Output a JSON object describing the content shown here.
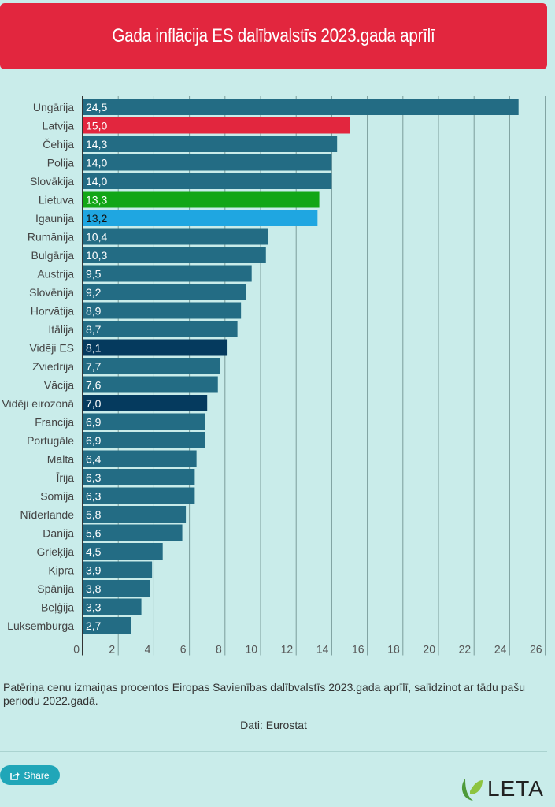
{
  "title": "Gada inflācija ES dalībvalstīs 2023.gada aprīlī",
  "caption": "Patēriņa cenu izmaiņas procentos Eiropas Savienības dalībvalstīs 2023.gada aprīlī, salīdzinot ar tādu pašu periodu 2022.gadā.",
  "source": "Dati: Eurostat",
  "share_label": "Share",
  "logo_text": "LETA",
  "colors": {
    "default": "#236c84",
    "latvia": "#e2263e",
    "lithuania": "#12a616",
    "estonia": "#1fa6e1",
    "average": "#053a5e",
    "background": "#c9ecea",
    "title": "#e2263e"
  },
  "chart_data": {
    "type": "bar",
    "orientation": "horizontal",
    "categories": [
      "Ungārija",
      "Latvija",
      "Čehija",
      "Polija",
      "Slovākija",
      "Lietuva",
      "Igaunija",
      "Rumānija",
      "Bulgārija",
      "Austrija",
      "Slovēnija",
      "Horvātija",
      "Itālija",
      "Vidēji ES",
      "Zviedrija",
      "Vācija",
      "Vidēji eirozonā",
      "Francija",
      "Portugāle",
      "Malta",
      "Īrija",
      "Somija",
      "Nīderlande",
      "Dānija",
      "Grieķija",
      "Kipra",
      "Spānija",
      "Beļģija",
      "Luksemburga"
    ],
    "values": [
      24.5,
      15.0,
      14.3,
      14.0,
      14.0,
      13.3,
      13.2,
      10.4,
      10.3,
      9.5,
      9.2,
      8.9,
      8.7,
      8.1,
      7.7,
      7.6,
      7.0,
      6.9,
      6.9,
      6.4,
      6.3,
      6.3,
      5.8,
      5.6,
      4.5,
      3.9,
      3.8,
      3.3,
      2.7
    ],
    "data_labels": [
      "24,5",
      "15,0",
      "14,3",
      "14,0",
      "14,0",
      "13,3",
      "13,2",
      "10,4",
      "10,3",
      "9,5",
      "9,2",
      "8,9",
      "8,7",
      "8,1",
      "7,7",
      "7,6",
      "7,0",
      "6,9",
      "6,9",
      "6,4",
      "6,3",
      "6,3",
      "5,8",
      "5,6",
      "4,5",
      "3,9",
      "3,8",
      "3,3",
      "2,7"
    ],
    "bar_colors": [
      "default",
      "latvia",
      "default",
      "default",
      "default",
      "lithuania",
      "estonia",
      "default",
      "default",
      "default",
      "default",
      "default",
      "default",
      "average",
      "default",
      "default",
      "average",
      "default",
      "default",
      "default",
      "default",
      "default",
      "default",
      "default",
      "default",
      "default",
      "default",
      "default",
      "default"
    ],
    "xlim": [
      0,
      26
    ],
    "xticks": [
      0,
      2,
      4,
      6,
      8,
      10,
      12,
      14,
      16,
      18,
      20,
      22,
      24,
      26
    ],
    "grid": true,
    "title": "Gada inflācija ES dalībvalstīs 2023.gada aprīlī",
    "xlabel": "",
    "ylabel": ""
  }
}
